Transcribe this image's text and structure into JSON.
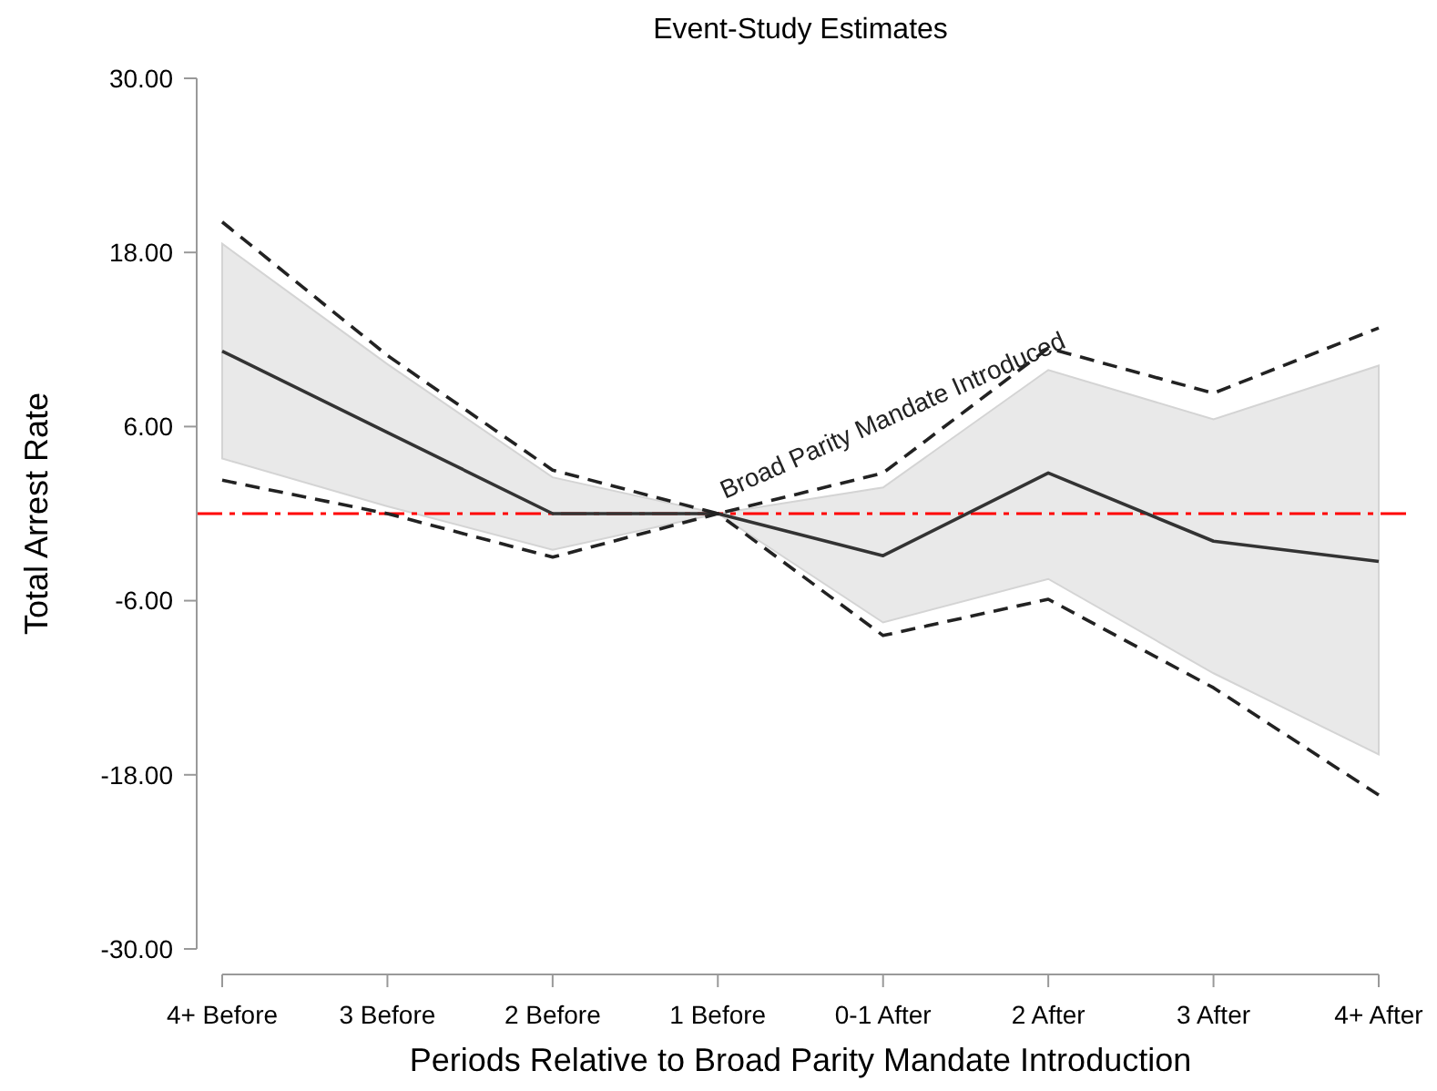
{
  "chart_data": {
    "type": "line",
    "title": "Event-Study Estimates",
    "xlabel": "Periods Relative to Broad Parity Mandate Introduction",
    "ylabel": "Total Arrest Rate",
    "categories": [
      "4+ Before",
      "3 Before",
      "2 Before",
      "1 Before",
      "0-1 After",
      "2 After",
      "3 After",
      "4+ After"
    ],
    "series": [
      {
        "color": "#333333",
        "line_style": "solid",
        "values": [
          11.2,
          5.6,
          0,
          0,
          -2.9,
          2.8,
          -1.9,
          -3.3
        ],
        "lower": [
          3.8,
          0.5,
          -2.5,
          0,
          -7.5,
          -4.5,
          -11,
          -16.6
        ],
        "upper": [
          18.6,
          10.3,
          2.5,
          0,
          1.8,
          9.9,
          6.5,
          10.2
        ]
      },
      {
        "color": "#222222",
        "line_style": "dashed",
        "values": [
          20.1,
          10.9,
          3.0,
          0,
          2.8,
          11.4,
          8.3,
          12.8
        ]
      },
      {
        "color": "#222222",
        "line_style": "dashed",
        "values": [
          2.3,
          0,
          -3.0,
          0,
          -8.4,
          -5.9,
          -12.0,
          -19.4
        ]
      }
    ],
    "ylim": [
      -30,
      30
    ],
    "yticks": [
      {
        "value": -30,
        "label": "-30.00"
      },
      {
        "value": -18,
        "label": "-18.00"
      },
      {
        "value": -6,
        "label": "-6.00"
      },
      {
        "value": 6,
        "label": "6.00"
      },
      {
        "value": 18,
        "label": "18.00"
      },
      {
        "value": 30,
        "label": "30.00"
      }
    ],
    "grid": false,
    "marker": "none",
    "ref_lines": [
      {
        "axis": "y",
        "value": 0,
        "color": "#ff0000",
        "line_style": "dashed"
      }
    ],
    "annotations": [
      {
        "text": "Broad Parity Mandate Introduced",
        "x": "1 Before",
        "y": 0
      }
    ]
  }
}
